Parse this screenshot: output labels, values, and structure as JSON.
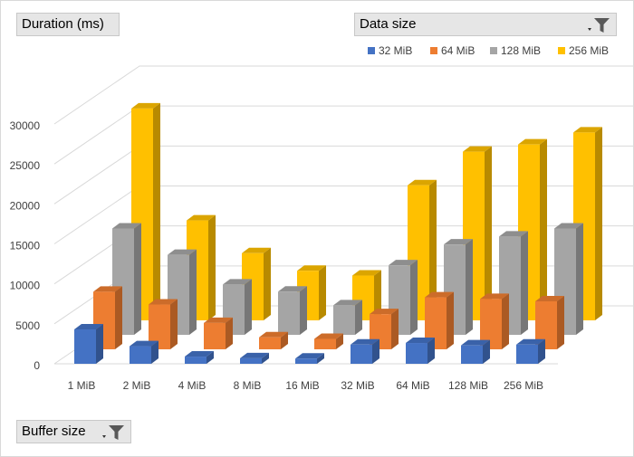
{
  "chart_data": {
    "type": "bar",
    "title": "",
    "ylabel_button": "Duration (ms)",
    "series_filter_label": "Data size",
    "category_filter_label": "Buffer size",
    "categories": [
      "1 MiB",
      "2 MiB",
      "4 MiB",
      "8 MiB",
      "16 MiB",
      "32 MiB",
      "64 MiB",
      "128 MiB",
      "256 MiB"
    ],
    "series": [
      {
        "name": "32 MiB",
        "color": "#4472c4",
        "values": [
          4300,
          2200,
          900,
          700,
          650,
          2400,
          2600,
          2300,
          2400
        ]
      },
      {
        "name": "64 MiB",
        "color": "#ed7d31",
        "values": [
          7200,
          5600,
          3300,
          1500,
          1300,
          4400,
          6500,
          6300,
          6000
        ]
      },
      {
        "name": "128 MiB",
        "color": "#a5a5a5",
        "values": [
          13300,
          10000,
          6300,
          5400,
          3700,
          8700,
          11300,
          12300,
          13300
        ]
      },
      {
        "name": "256 MiB",
        "color": "#ffc000",
        "values": [
          26500,
          12500,
          8400,
          6200,
          5600,
          16900,
          21100,
          22000,
          23500
        ]
      }
    ],
    "yticks": [
      "0",
      "5000",
      "10000",
      "15000",
      "20000",
      "25000",
      "30000"
    ],
    "ylim": [
      0,
      30000
    ],
    "legend_position": "top-right",
    "grid": true,
    "projection": "3d-column"
  }
}
